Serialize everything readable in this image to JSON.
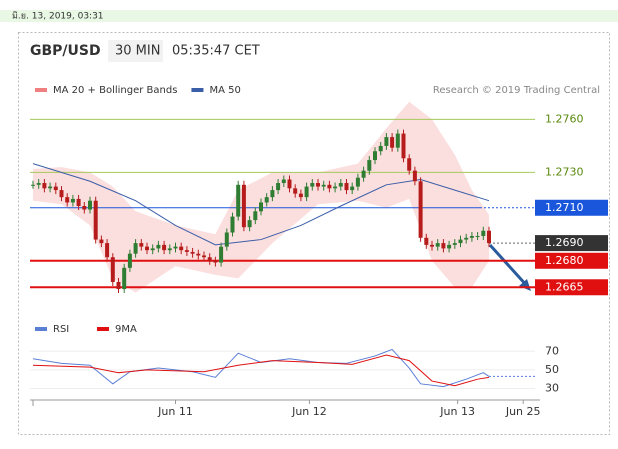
{
  "timestamp": "มิ.ย. 13, 2019, 03:31",
  "chart_data": {
    "type": "candlestick",
    "title": "GBP/USD",
    "interval": "30 MIN",
    "time": "05:35:47 CET",
    "credit": "Research © 2019 Trading Central",
    "legend": [
      {
        "name": "MA 20 + Bollinger Bands",
        "color": "#f08080"
      },
      {
        "name": "MA 50",
        "color": "#3b5ea8"
      }
    ],
    "xlim": [
      0,
      90
    ],
    "xticks": [
      {
        "value": 25,
        "label": "Jun 11"
      },
      {
        "value": 48.5,
        "label": "Jun 12"
      },
      {
        "value": 74.5,
        "label": "Jun 13"
      },
      {
        "value": 86,
        "label": "Jun 25"
      }
    ],
    "ylim": [
      1.2651,
      1.2771
    ],
    "up_color": "#2e7d32",
    "down_color": "#b71c1c",
    "close": [
      1.2723,
      1.2724,
      1.2721,
      1.2722,
      1.272,
      1.2716,
      1.2713,
      1.2715,
      1.2711,
      1.2709,
      1.2714,
      1.2692,
      1.269,
      1.2682,
      1.2668,
      1.2664,
      1.2676,
      1.2684,
      1.269,
      1.2688,
      1.2686,
      1.2687,
      1.2689,
      1.2686,
      1.2687,
      1.2688,
      1.2686,
      1.2685,
      1.2684,
      1.2683,
      1.2682,
      1.268,
      1.2679,
      1.2688,
      1.2696,
      1.2705,
      1.2723,
      1.2699,
      1.2703,
      1.2708,
      1.2713,
      1.2716,
      1.272,
      1.2724,
      1.2726,
      1.2721,
      1.2718,
      1.2716,
      1.2722,
      1.2724,
      1.2722,
      1.2723,
      1.2721,
      1.2722,
      1.2724,
      1.272,
      1.2722,
      1.2727,
      1.2731,
      1.2737,
      1.2742,
      1.2745,
      1.275,
      1.2744,
      1.2752,
      1.2738,
      1.2731,
      1.2725,
      1.2693,
      1.2689,
      1.2688,
      1.269,
      1.2687,
      1.2689,
      1.269,
      1.2692,
      1.2693,
      1.2694,
      1.2694,
      1.2697,
      1.269
    ],
    "ma50": {
      "x": [
        0,
        10,
        18,
        25,
        32,
        40,
        47,
        54,
        62,
        68,
        74,
        80
      ],
      "values": [
        1.2735,
        1.2725,
        1.2714,
        1.27,
        1.2689,
        1.2692,
        1.27,
        1.2711,
        1.2723,
        1.2726,
        1.272,
        1.2714
      ]
    },
    "bollinger": {
      "x": [
        0,
        5,
        10,
        14,
        18,
        25,
        32,
        36,
        42,
        50,
        57,
        62,
        66,
        70,
        74,
        77,
        80
      ],
      "upper": [
        1.2732,
        1.2733,
        1.273,
        1.2722,
        1.2708,
        1.27,
        1.2695,
        1.272,
        1.273,
        1.273,
        1.2735,
        1.2755,
        1.277,
        1.276,
        1.274,
        1.272,
        1.2706
      ],
      "lower": [
        1.2714,
        1.2712,
        1.27,
        1.267,
        1.2662,
        1.2677,
        1.2672,
        1.267,
        1.269,
        1.2712,
        1.2714,
        1.271,
        1.2715,
        1.268,
        1.2665,
        1.2665,
        1.268
      ]
    },
    "levels": [
      {
        "value": 1.276,
        "label": "1.2760",
        "color": "#a5c85a",
        "kind": "text"
      },
      {
        "value": 1.273,
        "label": "1.2730",
        "color": "#a5c85a",
        "kind": "text"
      },
      {
        "value": 1.271,
        "label": "1.2710",
        "color": "#1a56db",
        "kind": "box"
      },
      {
        "value": 1.269,
        "label": "1.2690",
        "color": "#333333",
        "kind": "current"
      },
      {
        "value": 1.268,
        "label": "1.2680",
        "color": "#e01010",
        "kind": "box"
      },
      {
        "value": 1.2665,
        "label": "1.2665",
        "color": "#e01010",
        "kind": "box"
      }
    ],
    "rsi": {
      "legend": [
        {
          "name": "RSI",
          "color": "#5b7fd6"
        },
        {
          "name": "9MA",
          "color": "#e01010"
        }
      ],
      "ylim": [
        23,
        80
      ],
      "yticks": [
        30,
        50,
        70
      ],
      "rsi_x": [
        0,
        5,
        10,
        14,
        17,
        22,
        28,
        32,
        36,
        40,
        45,
        50,
        55,
        60,
        63,
        66,
        68,
        72,
        76,
        79,
        80
      ],
      "rsi_values": [
        62,
        57,
        55,
        35,
        48,
        52,
        48,
        42,
        68,
        58,
        62,
        58,
        57,
        65,
        72,
        52,
        35,
        32,
        40,
        47,
        43
      ],
      "ma_x": [
        0,
        10,
        15,
        20,
        30,
        36,
        42,
        50,
        56,
        62,
        66,
        70,
        74,
        78,
        80
      ],
      "ma_values": [
        55,
        53,
        47,
        50,
        48,
        55,
        60,
        58,
        56,
        66,
        60,
        38,
        33,
        40,
        42
      ]
    }
  }
}
